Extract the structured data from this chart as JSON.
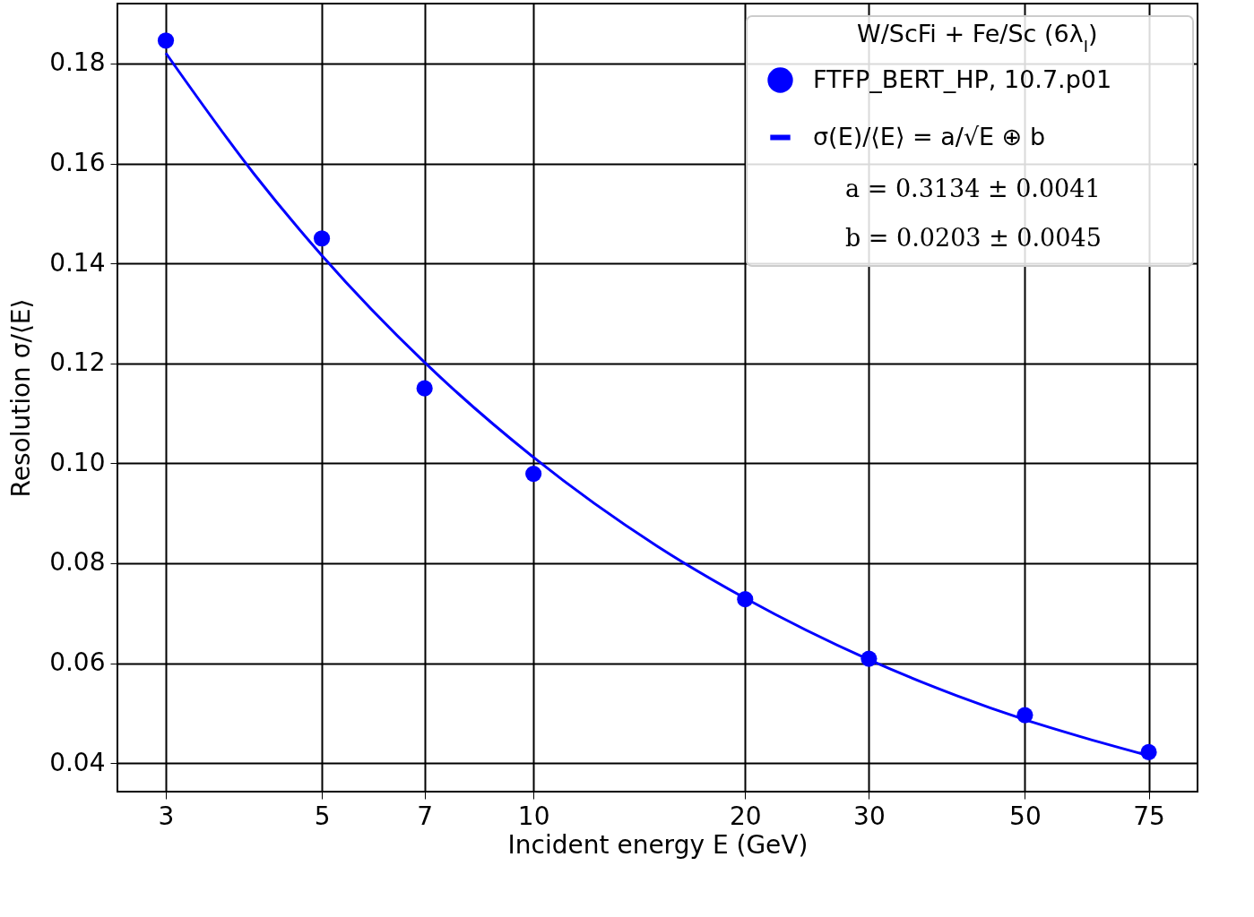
{
  "chart_data": {
    "type": "scatter",
    "xlabel": "Incident energy E (GeV)",
    "ylabel": "Resolution σ/⟨E⟩",
    "legend_title": "W/ScFi + Fe/Sc (6λ$_{I}$)",
    "series": [
      {
        "name": "FTFP_BERT_HP, 10.7.p01",
        "type": "scatter",
        "color": "#0000ff",
        "marker": "circle",
        "x": [
          3,
          5,
          7,
          10,
          20,
          30,
          50,
          75
        ],
        "values": [
          0.1846,
          0.145,
          0.115,
          0.0979,
          0.0728,
          0.0609,
          0.0496,
          0.0422
        ]
      },
      {
        "name": "σ(E)/⟨E⟩ = a/√E ⊕ b",
        "type": "line",
        "color": "#0000ff",
        "marker": "none",
        "line_style": "solid",
        "x": [
          3,
          4,
          5,
          7,
          10,
          15,
          20,
          30,
          40,
          50,
          60,
          75
        ],
        "values": [
          0.1821,
          0.158,
          0.1416,
          0.1202,
          0.1012,
          0.0834,
          0.073,
          0.0607,
          0.0535,
          0.0487,
          0.0453,
          0.0415
        ]
      }
    ],
    "annotations": [
      "a = 0.3134 ± 0.0041",
      "b = 0.0203 ± 0.0045"
    ],
    "log": "x",
    "grid": true,
    "legend": "top right",
    "xlim": [
      2.56,
      88
    ],
    "xticks": [
      3,
      5,
      7,
      10,
      20,
      30,
      50,
      75
    ],
    "ylim": [
      0.0343,
      0.192
    ],
    "yticks": [
      0.04,
      0.06,
      0.08,
      {
        "value": 0.1,
        "label": "0.10"
      },
      0.12,
      0.14,
      0.16,
      0.18
    ]
  }
}
